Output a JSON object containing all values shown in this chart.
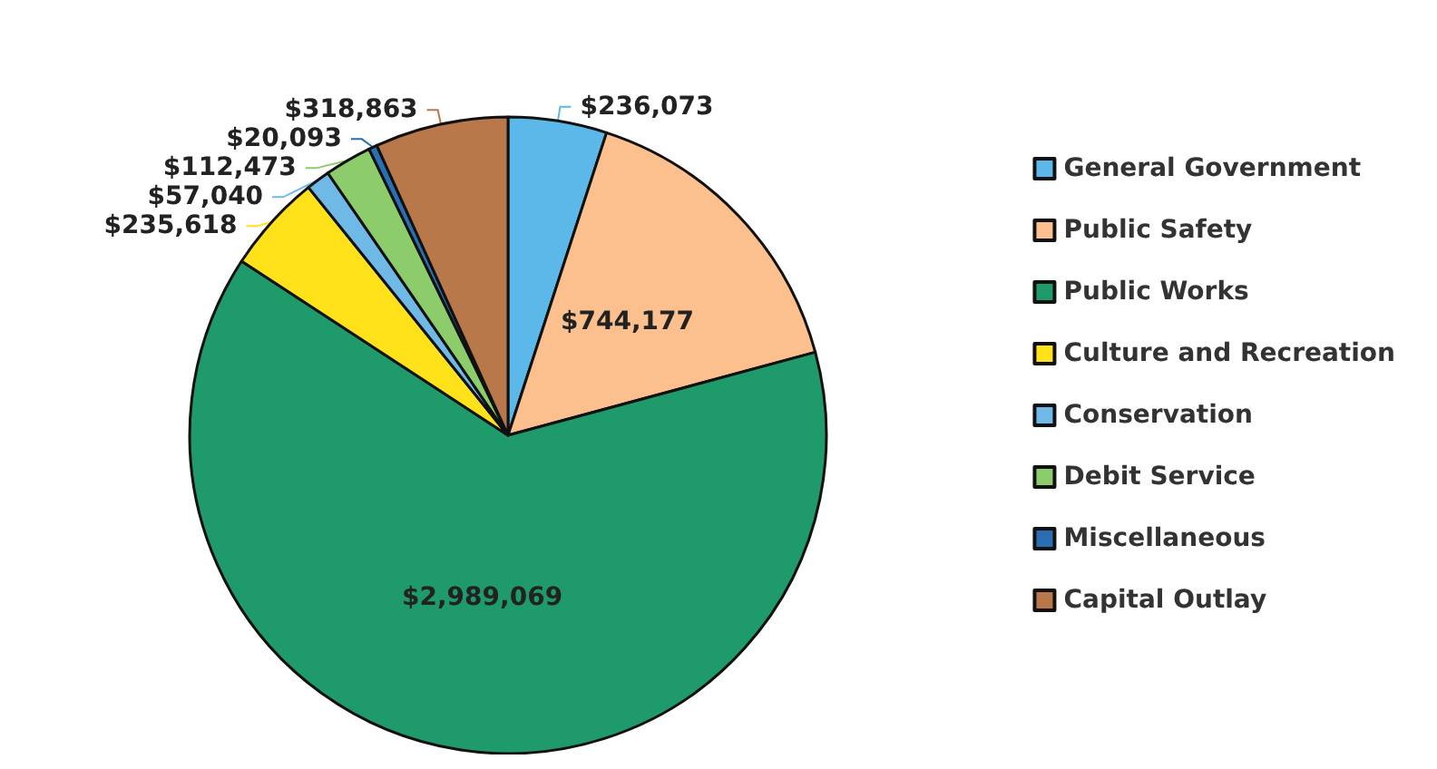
{
  "chart_data": {
    "type": "pie",
    "categories": [
      "General Government",
      "Public Safety",
      "Public Works",
      "Culture and Recreation",
      "Conservation",
      "Debit Service",
      "Miscellaneous",
      "Capital Outlay"
    ],
    "values": [
      236073,
      744177,
      2989069,
      235618,
      57040,
      112473,
      20093,
      318863
    ],
    "value_labels": [
      "$236,073",
      "$744,177",
      "$2,989,069",
      "$235,618",
      "$57,040",
      "$112,473",
      "$20,093",
      "$318,863"
    ],
    "colors": [
      "#5bb8e8",
      "#fbc08d",
      "#1f9a6a",
      "#ffe21a",
      "#6fb9e6",
      "#8dcc6a",
      "#2a6fb3",
      "#b8784a"
    ],
    "legend": "right"
  }
}
